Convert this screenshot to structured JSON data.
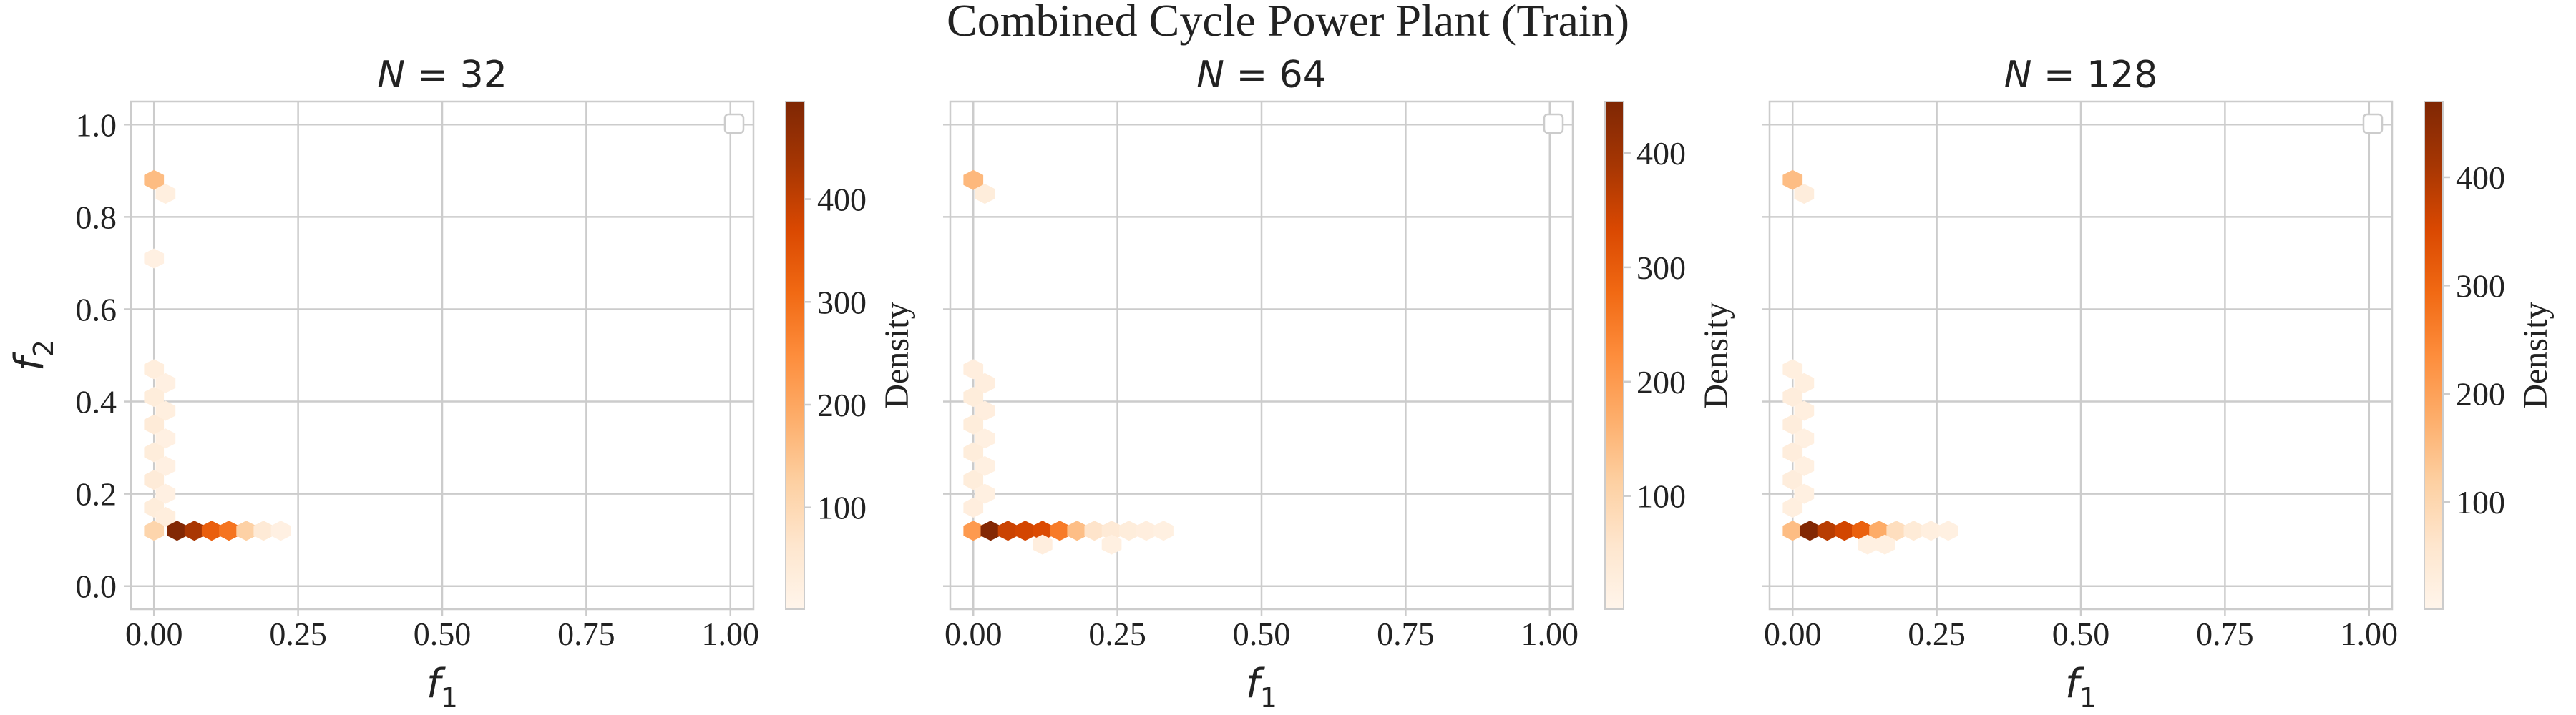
{
  "figure_title": "Combined Cycle Power Plant (Train)",
  "colors": {
    "cmap": [
      "#fff5eb",
      "#fee6ce",
      "#fdd0a2",
      "#fdae6b",
      "#fd8d3c",
      "#f16913",
      "#d94801",
      "#a63603",
      "#7f2704"
    ],
    "grid": "#cccccc",
    "text": "#222222"
  },
  "chart_data": [
    {
      "type": "heatmap",
      "subtype": "hexbin",
      "title": "N = 32",
      "xlabel": "f1",
      "ylabel": "f2",
      "xlim": [
        -0.04,
        1.04
      ],
      "ylim": [
        -0.05,
        1.05
      ],
      "xticks": [
        0.0,
        0.25,
        0.5,
        0.75,
        1.0
      ],
      "xtick_labels": [
        "0.00",
        "0.25",
        "0.50",
        "0.75",
        "1.00"
      ],
      "yticks": [
        0.0,
        0.2,
        0.4,
        0.6,
        0.8,
        1.0
      ],
      "ytick_labels": [
        "0.0",
        "0.2",
        "0.4",
        "0.6",
        "0.8",
        "1.0"
      ],
      "grid": true,
      "legend": "top-right (empty)",
      "colorbar": {
        "label": "Density",
        "range": [
          1,
          495
        ],
        "ticks": [
          100,
          200,
          300,
          400
        ],
        "tick_labels": [
          "100",
          "200",
          "300",
          "400"
        ]
      },
      "cells": [
        {
          "x": 0.0,
          "y": 0.88,
          "density": 160
        },
        {
          "x": 0.02,
          "y": 0.85,
          "density": 25
        },
        {
          "x": 0.0,
          "y": 0.71,
          "density": 20
        },
        {
          "x": 0.0,
          "y": 0.47,
          "density": 30
        },
        {
          "x": 0.02,
          "y": 0.44,
          "density": 20
        },
        {
          "x": 0.0,
          "y": 0.41,
          "density": 35
        },
        {
          "x": 0.02,
          "y": 0.38,
          "density": 25
        },
        {
          "x": 0.0,
          "y": 0.35,
          "density": 40
        },
        {
          "x": 0.02,
          "y": 0.32,
          "density": 20
        },
        {
          "x": 0.0,
          "y": 0.29,
          "density": 35
        },
        {
          "x": 0.02,
          "y": 0.26,
          "density": 20
        },
        {
          "x": 0.0,
          "y": 0.23,
          "density": 40
        },
        {
          "x": 0.02,
          "y": 0.2,
          "density": 20
        },
        {
          "x": 0.0,
          "y": 0.17,
          "density": 35
        },
        {
          "x": 0.02,
          "y": 0.15,
          "density": 30
        },
        {
          "x": 0.0,
          "y": 0.12,
          "density": 110
        },
        {
          "x": 0.04,
          "y": 0.12,
          "density": 490
        },
        {
          "x": 0.07,
          "y": 0.12,
          "density": 430
        },
        {
          "x": 0.1,
          "y": 0.12,
          "density": 330
        },
        {
          "x": 0.13,
          "y": 0.12,
          "density": 290
        },
        {
          "x": 0.16,
          "y": 0.12,
          "density": 120
        },
        {
          "x": 0.19,
          "y": 0.12,
          "density": 45
        },
        {
          "x": 0.22,
          "y": 0.12,
          "density": 20
        }
      ]
    },
    {
      "type": "heatmap",
      "subtype": "hexbin",
      "title": "N = 64",
      "xlabel": "f1",
      "ylabel": "",
      "xlim": [
        -0.04,
        1.04
      ],
      "ylim": [
        -0.05,
        1.05
      ],
      "xticks": [
        0.0,
        0.25,
        0.5,
        0.75,
        1.0
      ],
      "xtick_labels": [
        "0.00",
        "0.25",
        "0.50",
        "0.75",
        "1.00"
      ],
      "grid": true,
      "legend": "top-right (empty)",
      "colorbar": {
        "label": "Density",
        "range": [
          1,
          445
        ],
        "ticks": [
          100,
          200,
          300,
          400
        ],
        "tick_labels": [
          "100",
          "200",
          "300",
          "400"
        ]
      },
      "cells": [
        {
          "x": 0.0,
          "y": 0.88,
          "density": 150
        },
        {
          "x": 0.02,
          "y": 0.85,
          "density": 30
        },
        {
          "x": 0.0,
          "y": 0.47,
          "density": 25
        },
        {
          "x": 0.02,
          "y": 0.44,
          "density": 25
        },
        {
          "x": 0.0,
          "y": 0.41,
          "density": 30
        },
        {
          "x": 0.02,
          "y": 0.38,
          "density": 25
        },
        {
          "x": 0.0,
          "y": 0.35,
          "density": 30
        },
        {
          "x": 0.02,
          "y": 0.32,
          "density": 20
        },
        {
          "x": 0.0,
          "y": 0.29,
          "density": 30
        },
        {
          "x": 0.02,
          "y": 0.26,
          "density": 20
        },
        {
          "x": 0.0,
          "y": 0.23,
          "density": 30
        },
        {
          "x": 0.02,
          "y": 0.2,
          "density": 20
        },
        {
          "x": 0.0,
          "y": 0.17,
          "density": 25
        },
        {
          "x": 0.0,
          "y": 0.12,
          "density": 200
        },
        {
          "x": 0.03,
          "y": 0.12,
          "density": 440
        },
        {
          "x": 0.06,
          "y": 0.12,
          "density": 350
        },
        {
          "x": 0.09,
          "y": 0.12,
          "density": 340
        },
        {
          "x": 0.12,
          "y": 0.12,
          "density": 330
        },
        {
          "x": 0.15,
          "y": 0.12,
          "density": 250
        },
        {
          "x": 0.18,
          "y": 0.12,
          "density": 140
        },
        {
          "x": 0.21,
          "y": 0.12,
          "density": 60
        },
        {
          "x": 0.24,
          "y": 0.12,
          "density": 40
        },
        {
          "x": 0.27,
          "y": 0.12,
          "density": 30
        },
        {
          "x": 0.3,
          "y": 0.12,
          "density": 25
        },
        {
          "x": 0.33,
          "y": 0.12,
          "density": 20
        },
        {
          "x": 0.12,
          "y": 0.09,
          "density": 25
        },
        {
          "x": 0.24,
          "y": 0.09,
          "density": 20
        }
      ]
    },
    {
      "type": "heatmap",
      "subtype": "hexbin",
      "title": "N = 128",
      "xlabel": "f1",
      "ylabel": "",
      "xlim": [
        -0.04,
        1.04
      ],
      "ylim": [
        -0.05,
        1.05
      ],
      "xticks": [
        0.0,
        0.25,
        0.5,
        0.75,
        1.0
      ],
      "xtick_labels": [
        "0.00",
        "0.25",
        "0.50",
        "0.75",
        "1.00"
      ],
      "grid": true,
      "legend": "top-right (empty)",
      "colorbar": {
        "label": "Density",
        "range": [
          1,
          470
        ],
        "ticks": [
          100,
          200,
          300,
          400
        ],
        "tick_labels": [
          "100",
          "200",
          "300",
          "400"
        ]
      },
      "cells": [
        {
          "x": 0.0,
          "y": 0.88,
          "density": 150
        },
        {
          "x": 0.02,
          "y": 0.85,
          "density": 30
        },
        {
          "x": 0.0,
          "y": 0.47,
          "density": 25
        },
        {
          "x": 0.02,
          "y": 0.44,
          "density": 25
        },
        {
          "x": 0.0,
          "y": 0.41,
          "density": 30
        },
        {
          "x": 0.02,
          "y": 0.38,
          "density": 25
        },
        {
          "x": 0.0,
          "y": 0.35,
          "density": 30
        },
        {
          "x": 0.02,
          "y": 0.32,
          "density": 20
        },
        {
          "x": 0.0,
          "y": 0.29,
          "density": 30
        },
        {
          "x": 0.02,
          "y": 0.26,
          "density": 20
        },
        {
          "x": 0.0,
          "y": 0.23,
          "density": 30
        },
        {
          "x": 0.02,
          "y": 0.2,
          "density": 20
        },
        {
          "x": 0.0,
          "y": 0.17,
          "density": 25
        },
        {
          "x": 0.0,
          "y": 0.12,
          "density": 150
        },
        {
          "x": 0.03,
          "y": 0.12,
          "density": 465
        },
        {
          "x": 0.06,
          "y": 0.12,
          "density": 390
        },
        {
          "x": 0.09,
          "y": 0.12,
          "density": 360
        },
        {
          "x": 0.12,
          "y": 0.12,
          "density": 310
        },
        {
          "x": 0.15,
          "y": 0.12,
          "density": 180
        },
        {
          "x": 0.18,
          "y": 0.12,
          "density": 80
        },
        {
          "x": 0.21,
          "y": 0.12,
          "density": 40
        },
        {
          "x": 0.24,
          "y": 0.12,
          "density": 25
        },
        {
          "x": 0.27,
          "y": 0.12,
          "density": 20
        },
        {
          "x": 0.13,
          "y": 0.09,
          "density": 20
        },
        {
          "x": 0.16,
          "y": 0.09,
          "density": 20
        }
      ]
    }
  ]
}
